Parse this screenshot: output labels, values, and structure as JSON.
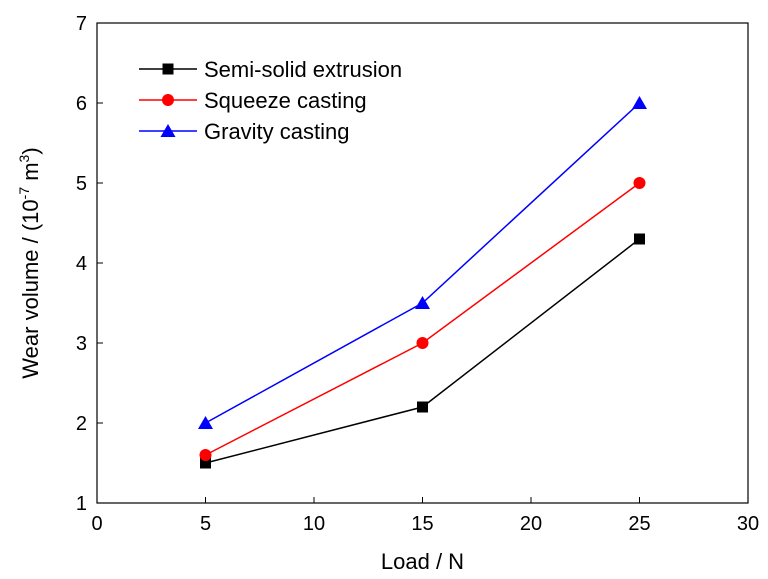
{
  "chart_data": {
    "type": "line",
    "title": "",
    "xlabel": "Load / N",
    "ylabel": {
      "prefix": "Wear volume / (10",
      "exp1": "-7",
      "mid": " m",
      "exp2": "3",
      "suffix": ")"
    },
    "xlim": [
      0,
      30
    ],
    "ylim": [
      1,
      7
    ],
    "xticks": [
      0,
      5,
      10,
      15,
      20,
      25,
      30
    ],
    "yticks": [
      1,
      2,
      3,
      4,
      5,
      6,
      7
    ],
    "grid": false,
    "legend_position": "top-left",
    "x": [
      5,
      15,
      25
    ],
    "series": [
      {
        "name": "Semi-solid extrusion",
        "values": [
          1.5,
          2.2,
          4.3
        ],
        "color": "#000000",
        "marker": "square"
      },
      {
        "name": "Squeeze casting",
        "values": [
          1.6,
          3.0,
          5.0
        ],
        "color": "#ff0000",
        "marker": "circle"
      },
      {
        "name": "Gravity casting",
        "values": [
          2.0,
          3.5,
          6.0
        ],
        "color": "#0000ff",
        "marker": "triangle"
      }
    ]
  }
}
